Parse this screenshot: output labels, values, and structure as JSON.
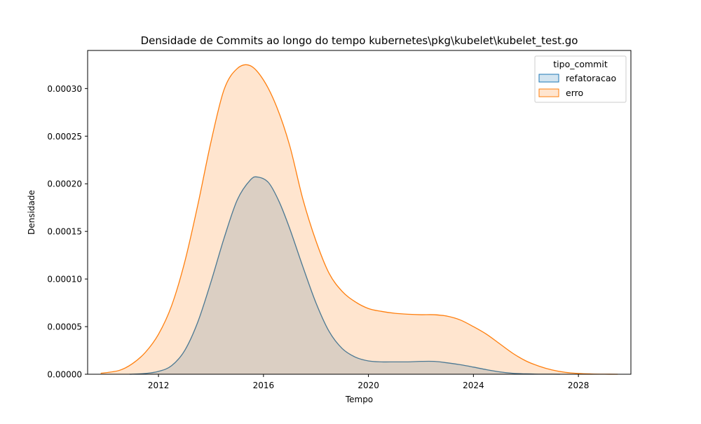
{
  "chart_data": {
    "type": "area",
    "title": "Densidade de Commits ao longo do tempo kubernetes\\pkg\\kubelet\\kubelet_test.go",
    "xlabel": "Tempo",
    "ylabel": "Densidade",
    "xlim": [
      2009.3,
      2030.0
    ],
    "ylim": [
      0,
      0.00034
    ],
    "x_ticks": [
      2012,
      2016,
      2020,
      2024,
      2028
    ],
    "x_tick_labels": [
      "2012",
      "2016",
      "2020",
      "2024",
      "2028"
    ],
    "y_ticks": [
      0,
      5e-05,
      0.0001,
      0.00015,
      0.0002,
      0.00025,
      0.0003
    ],
    "y_tick_labels": [
      "0.00000",
      "0.00005",
      "0.00010",
      "0.00015",
      "0.00020",
      "0.00025",
      "0.00030"
    ],
    "grid": false,
    "legend": {
      "title": "tipo_commit",
      "placement": "top-right"
    },
    "series": [
      {
        "name": "refatoracao",
        "color": "#1f77b4",
        "x": [
          2010.9,
          2011.5,
          2012.0,
          2012.5,
          2013.0,
          2013.5,
          2014.0,
          2014.5,
          2015.0,
          2015.5,
          2015.8,
          2016.2,
          2016.6,
          2017.0,
          2017.5,
          2018.0,
          2018.5,
          2019.0,
          2019.5,
          2020.0,
          2020.5,
          2021.0,
          2021.5,
          2022.0,
          2022.5,
          2023.0,
          2023.5,
          2024.0,
          2024.5,
          2025.0,
          2025.5,
          2026.0,
          2026.5,
          2027.0,
          2027.3
        ],
        "y": [
          0.0,
          8e-07,
          3e-06,
          9e-06,
          2.5e-05,
          5.5e-05,
          9.7e-05,
          0.000143,
          0.000183,
          0.000204,
          0.000207,
          0.000201,
          0.000181,
          0.000153,
          0.000113,
          7.5e-05,
          4.5e-05,
          2.7e-05,
          1.8e-05,
          1.4e-05,
          1.3e-05,
          1.3e-05,
          1.3e-05,
          1.35e-05,
          1.35e-05,
          1.2e-05,
          1e-05,
          7.5e-06,
          4.8e-06,
          2.5e-06,
          1e-06,
          4e-07,
          1e-07,
          1e-07,
          0.0
        ]
      },
      {
        "name": "erro",
        "color": "#ff7f0e",
        "x": [
          2009.8,
          2010.5,
          2011.0,
          2011.5,
          2012.0,
          2012.5,
          2013.0,
          2013.5,
          2014.0,
          2014.5,
          2015.0,
          2015.5,
          2016.0,
          2016.5,
          2017.0,
          2017.5,
          2018.0,
          2018.5,
          2019.0,
          2019.5,
          2020.0,
          2020.5,
          2021.0,
          2021.5,
          2022.0,
          2022.5,
          2023.0,
          2023.5,
          2024.0,
          2024.5,
          2025.0,
          2025.5,
          2026.0,
          2026.5,
          2027.0,
          2027.5,
          2028.0,
          2028.5,
          2029.0,
          2029.5
        ],
        "y": [
          1e-06,
          4e-06,
          1.1e-05,
          2.3e-05,
          4.2e-05,
          7.2e-05,
          0.000118,
          0.000178,
          0.000244,
          0.000299,
          0.000321,
          0.000324,
          0.000309,
          0.000281,
          0.00024,
          0.000184,
          0.00014,
          0.000106,
          8.7e-05,
          7.6e-05,
          6.9e-05,
          6.6e-05,
          6.4e-05,
          6.3e-05,
          6.25e-05,
          6.25e-05,
          6.1e-05,
          5.7e-05,
          5e-05,
          4.2e-05,
          3.2e-05,
          2.2e-05,
          1.4e-05,
          8.5e-06,
          4.5e-06,
          2e-06,
          8e-07,
          3e-07,
          1e-07,
          0.0
        ]
      }
    ]
  }
}
